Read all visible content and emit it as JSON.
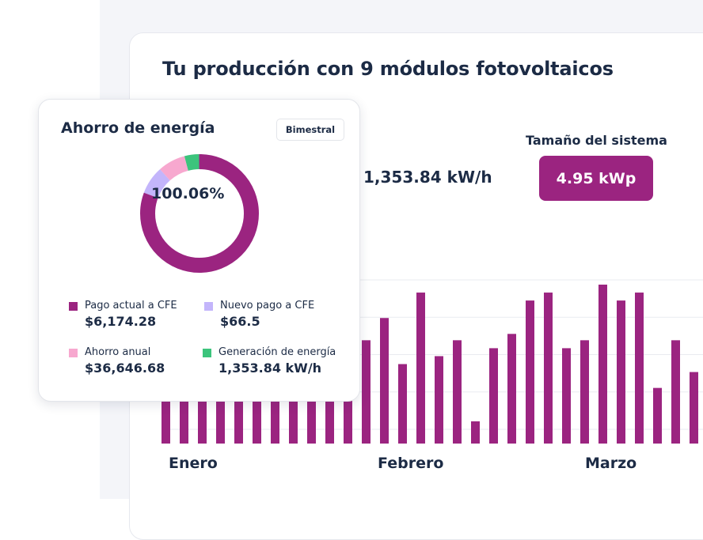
{
  "production": {
    "title": "Tu producción con 9 módulos fotovoltaicos",
    "energy_value": "1,353.84 kW/h",
    "system_size_label": "Tamaño del sistema",
    "system_size_value": "4.95 kWp"
  },
  "savings_card": {
    "title": "Ahorro de energía",
    "period_button": "Bimestral",
    "percentage": "100.06%",
    "legend": [
      {
        "label": "Pago actual a CFE",
        "value": "$6,174.28",
        "color": "#9b2480"
      },
      {
        "label": "Nuevo pago a CFE",
        "value": "$66.5",
        "color": "#c3b5fb"
      },
      {
        "label": "Ahorro anual",
        "value": "$36,646.68",
        "color": "#f7a8cf"
      },
      {
        "label": "Generación de energía",
        "value": "1,353.84 kW/h",
        "color": "#3cc47c"
      }
    ]
  },
  "colors": {
    "brand": "#9b2480",
    "text": "#1c2b45",
    "grid": "#e9ebf0"
  },
  "chart_data": {
    "type": "bar",
    "title": "",
    "xlabel": "",
    "ylabel": "",
    "ylim": [
      0,
      100
    ],
    "grid": true,
    "month_labels": [
      "Enero",
      "Febrero",
      "Marzo"
    ],
    "values": [
      30,
      30,
      30,
      30,
      30,
      30,
      30,
      30,
      30,
      30,
      30,
      65,
      79,
      50,
      95,
      55,
      65,
      14,
      60,
      69,
      90,
      95,
      60,
      65,
      100,
      90,
      95,
      35,
      65,
      45
    ]
  }
}
